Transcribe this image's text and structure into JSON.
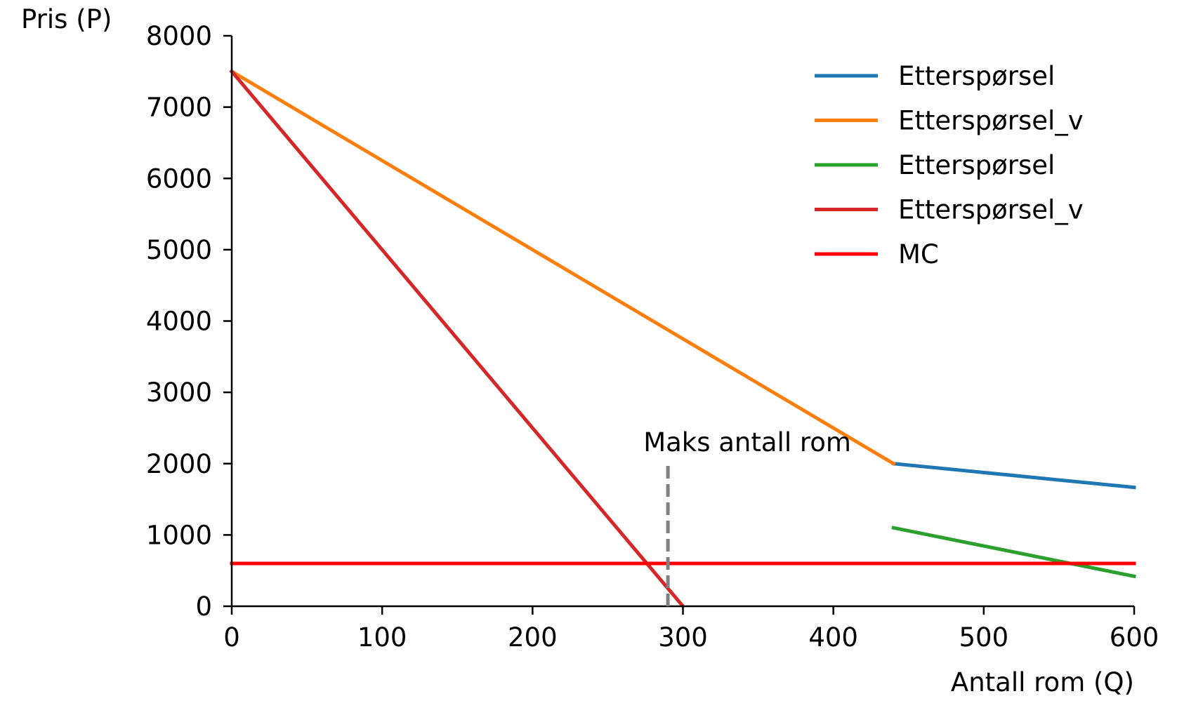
{
  "chart_data": {
    "type": "line",
    "xlabel": "Antall rom (Q)",
    "ylabel": "Pris (P)",
    "xlim": [
      0,
      600
    ],
    "ylim": [
      0,
      8000
    ],
    "xticks": [
      0,
      100,
      200,
      300,
      400,
      500,
      600
    ],
    "yticks": [
      0,
      1000,
      2000,
      3000,
      4000,
      5000,
      6000,
      7000,
      8000
    ],
    "xtick_labels": [
      "0",
      "100",
      "200",
      "300",
      "400",
      "500",
      "600"
    ],
    "ytick_labels": [
      "0",
      "1000",
      "2000",
      "3000",
      "4000",
      "5000",
      "6000",
      "7000",
      "8000"
    ],
    "grid": false,
    "legend_position": "top-right",
    "series": [
      {
        "name": "Etterspørsel",
        "color": "#1f77b4",
        "x": [
          440,
          600
        ],
        "y": [
          2000,
          1667
        ]
      },
      {
        "name": "Etterspørsel_v",
        "color": "#ff7f0e",
        "x": [
          0,
          440
        ],
        "y": [
          7500,
          2000
        ]
      },
      {
        "name": "Etterspørsel",
        "color": "#2ca02c",
        "x": [
          440,
          600
        ],
        "y": [
          1100,
          420
        ]
      },
      {
        "name": "Etterspørsel_v",
        "color": "#d62728",
        "x": [
          0,
          300
        ],
        "y": [
          7500,
          0
        ]
      },
      {
        "name": "MC",
        "color": "#ff0000",
        "x": [
          0,
          600
        ],
        "y": [
          600,
          600
        ]
      }
    ],
    "annotations": [
      {
        "text": "Maks antall rom",
        "x": 290,
        "y": 2000,
        "line": {
          "x": 290,
          "y_from": 0,
          "y_to": 2000,
          "style": "dashed",
          "color": "#808080"
        }
      }
    ]
  }
}
